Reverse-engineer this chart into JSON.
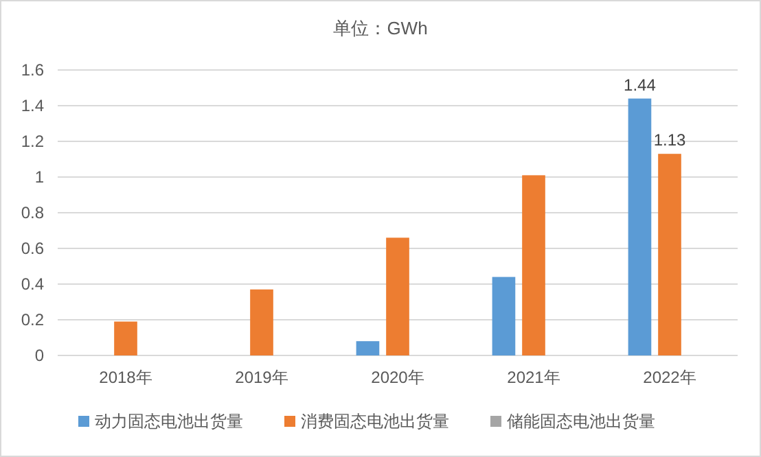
{
  "chart_data": {
    "type": "bar",
    "title": "单位：GWh",
    "categories": [
      "2018年",
      "2019年",
      "2020年",
      "2021年",
      "2022年"
    ],
    "series": [
      {
        "name": "动力固态电池出货量",
        "color": "#5b9bd5",
        "values": [
          0,
          0,
          0.08,
          0.44,
          1.44
        ],
        "value_labels": [
          null,
          null,
          null,
          null,
          "1.44"
        ]
      },
      {
        "name": "消费固态电池出货量",
        "color": "#ed7d31",
        "values": [
          0.19,
          0.37,
          0.66,
          1.01,
          1.13
        ],
        "value_labels": [
          null,
          null,
          null,
          null,
          "1.13"
        ]
      },
      {
        "name": "储能固态电池出货量",
        "color": "#a5a5a5",
        "values": [
          0,
          0,
          0,
          0,
          0
        ]
      }
    ],
    "ylim": [
      0,
      1.6
    ],
    "yticks": [
      0,
      0.2,
      0.4,
      0.6,
      0.8,
      1,
      1.2,
      1.4,
      1.6
    ],
    "grid": "y",
    "legend": "bottom"
  }
}
